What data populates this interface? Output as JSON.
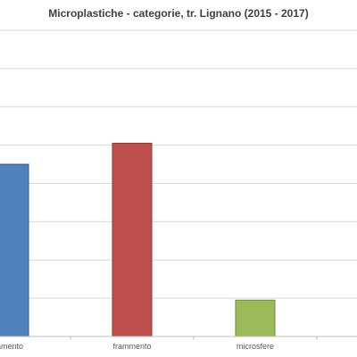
{
  "chart_data": {
    "type": "bar",
    "title": "Microplastiche - categorie, tr. Lignano (2015 - 2017)",
    "categories": [
      "filamento",
      "frammento",
      "microsfere"
    ],
    "visible_category_labels": [
      "lamento",
      "frammento",
      "microsfere"
    ],
    "values": [
      45,
      50.5,
      9.5
    ],
    "ylim": [
      0,
      80
    ],
    "yticks": [
      0,
      10,
      20,
      30,
      40,
      50,
      60,
      70,
      80
    ],
    "grid": true,
    "legend": "none",
    "bar_colors": [
      "#4f81bd",
      "#c0504d",
      "#9bbb59"
    ],
    "bar_edge_colors": [
      "#385d8a",
      "#8c3836",
      "#71893f"
    ],
    "gridline_color": "#d9d9d9",
    "axis_color": "#bfbfbf"
  }
}
